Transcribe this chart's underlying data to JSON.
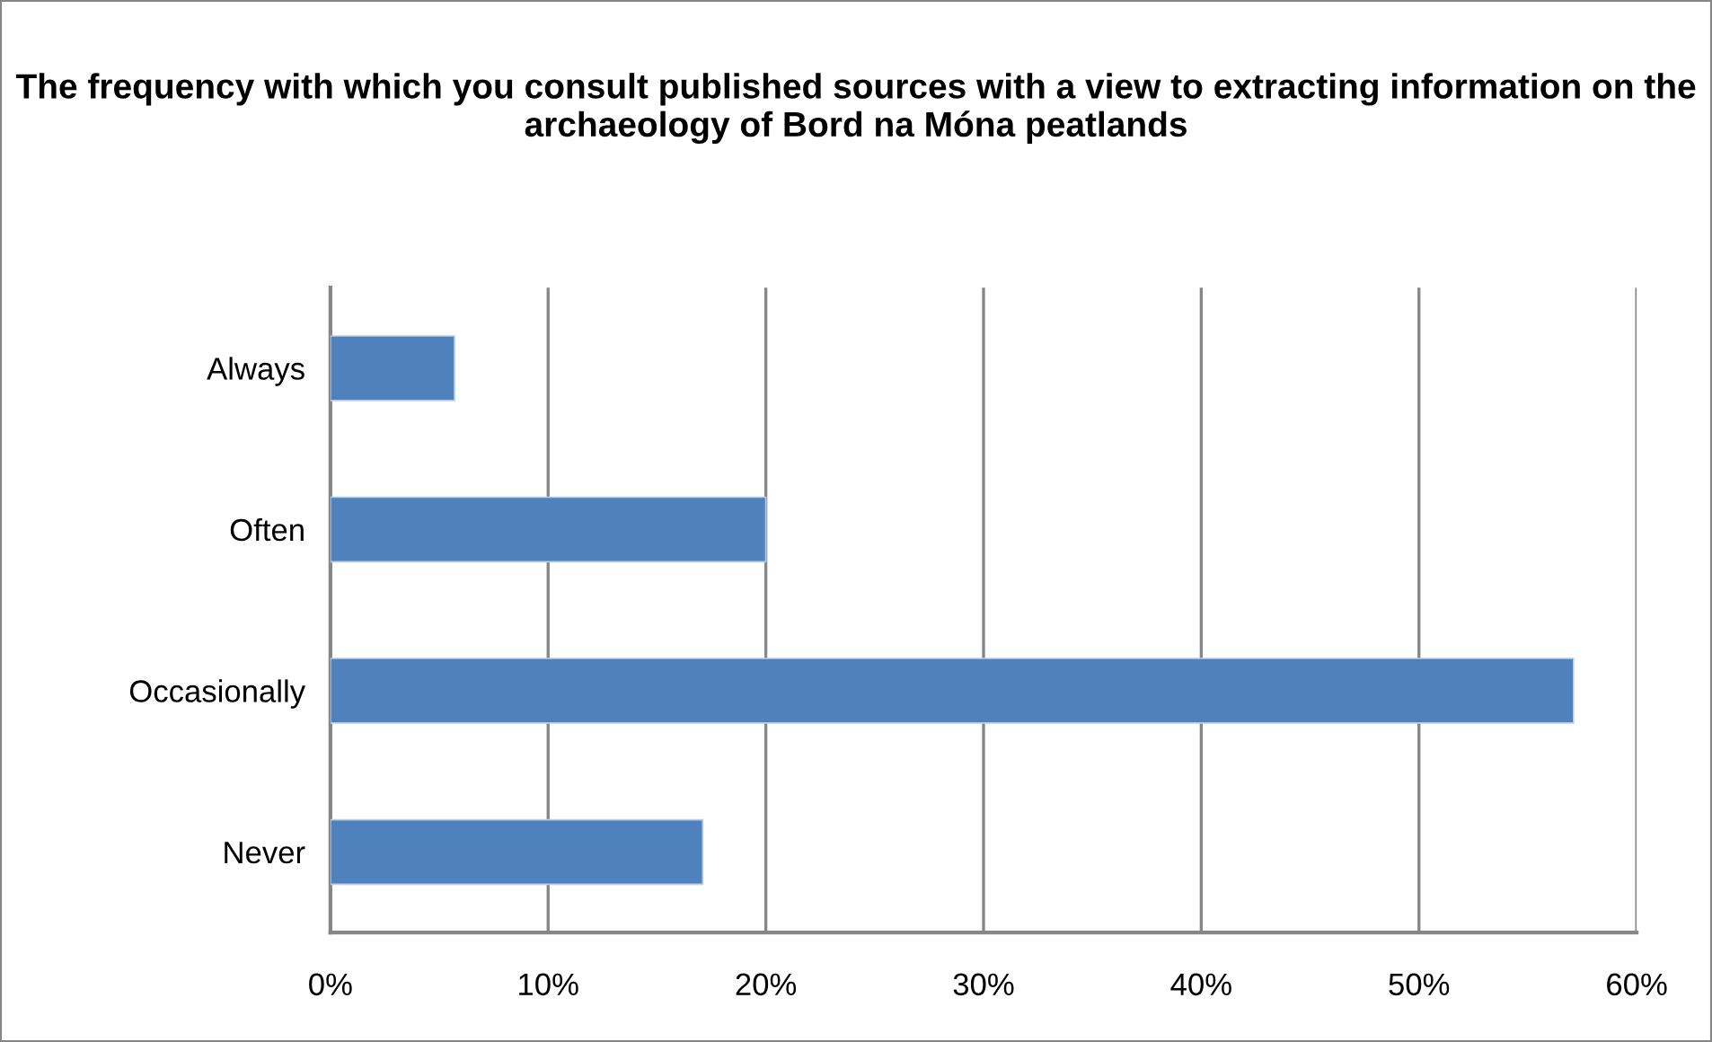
{
  "chart_data": {
    "type": "bar",
    "orientation": "horizontal",
    "title": "The frequency with which you consult published sources with a view to extracting information on the archaeology of Bord na Móna peatlands",
    "categories": [
      "Always",
      "Often",
      "Occasionally",
      "Never"
    ],
    "values": [
      5.7,
      20,
      57.1,
      17.1
    ],
    "color": "#4f81bd",
    "xlim": [
      0,
      60
    ],
    "xticks": [
      {
        "value": 0,
        "label": "0%"
      },
      {
        "value": 10,
        "label": "10%"
      },
      {
        "value": 20,
        "label": "20%"
      },
      {
        "value": 30,
        "label": "30%"
      },
      {
        "value": 40,
        "label": "40%"
      },
      {
        "value": 50,
        "label": "50%"
      },
      {
        "value": 60,
        "label": "60%"
      }
    ],
    "grid": "x"
  }
}
